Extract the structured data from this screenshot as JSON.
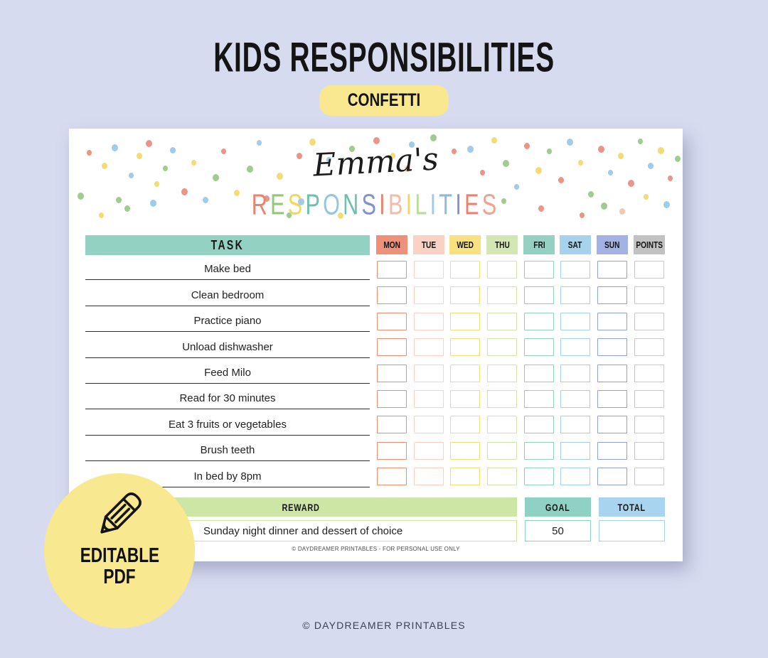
{
  "page": {
    "background_color": "#d7dbf0",
    "title": "KIDS RESPONSIBILITIES",
    "variant_badge": "CONFETTI",
    "variant_badge_color": "#f9e88f",
    "footer": "© DAYDREAMER PRINTABLES"
  },
  "card": {
    "owner_name": "Emma's",
    "heading": "RESPONSIBILITIES",
    "heading_letter_colors": [
      "#e8836f",
      "#90c878",
      "#f0d75e",
      "#6cc0ae",
      "#92c5e6",
      "#6cc0ae",
      "#7f92d6",
      "#e8836f",
      "#f2bca9",
      "#f0d75e",
      "#b9dc9a",
      "#9ec9e8",
      "#8fb8e0",
      "#7f92d6",
      "#e8836f",
      "#efa28e"
    ],
    "confetti_colors": [
      "#ec8b7d",
      "#f2d968",
      "#96c983",
      "#96c8e8",
      "#f2c2ad"
    ],
    "table": {
      "task_header": {
        "label": "TASK",
        "bg": "#93d1c2"
      },
      "columns": [
        {
          "label": "MON",
          "bg": "#ef907a",
          "box_border": "#eb8f75"
        },
        {
          "label": "TUE",
          "bg": "#fad2c5",
          "box_border": "#f9d2c3"
        },
        {
          "label": "WED",
          "bg": "#f8e17e",
          "box_border": "#f2dc7c"
        },
        {
          "label": "THU",
          "bg": "#d2e7b3",
          "box_border": "#cfe5ae"
        },
        {
          "label": "FRI",
          "bg": "#94d1c2",
          "box_border": "#94cfc0"
        },
        {
          "label": "SAT",
          "bg": "#a6d2ee",
          "box_border": "#a5cfeb"
        },
        {
          "label": "SUN",
          "bg": "#a3b2e2",
          "box_border": "#8fa2d8"
        },
        {
          "label": "POINTS",
          "bg": "#c3c2c2",
          "box_border": "#c9c8c8"
        }
      ],
      "tasks": [
        "Make bed",
        "Clean bedroom",
        "Practice piano",
        "Unload dishwasher",
        "Feed Milo",
        "Read for 30 minutes",
        "Eat 3 fruits or vegetables",
        "Brush teeth",
        "In bed by 8pm"
      ]
    },
    "reward": {
      "label": "REWARD",
      "bg": "#cde6a6",
      "value": "Sunday night dinner and dessert of choice"
    },
    "goal": {
      "label": "GOAL",
      "bg": "#8fd2c3",
      "value": "50"
    },
    "total": {
      "label": "TOTAL",
      "bg": "#a9d4ef",
      "value": ""
    },
    "license_note": "© DAYDREAMER PRINTABLES - FOR PERSONAL USE ONLY"
  },
  "editable_badge": {
    "bg": "#f8e88f",
    "icon": "pencil-icon",
    "line1": "EDITABLE",
    "line2": "PDF"
  }
}
